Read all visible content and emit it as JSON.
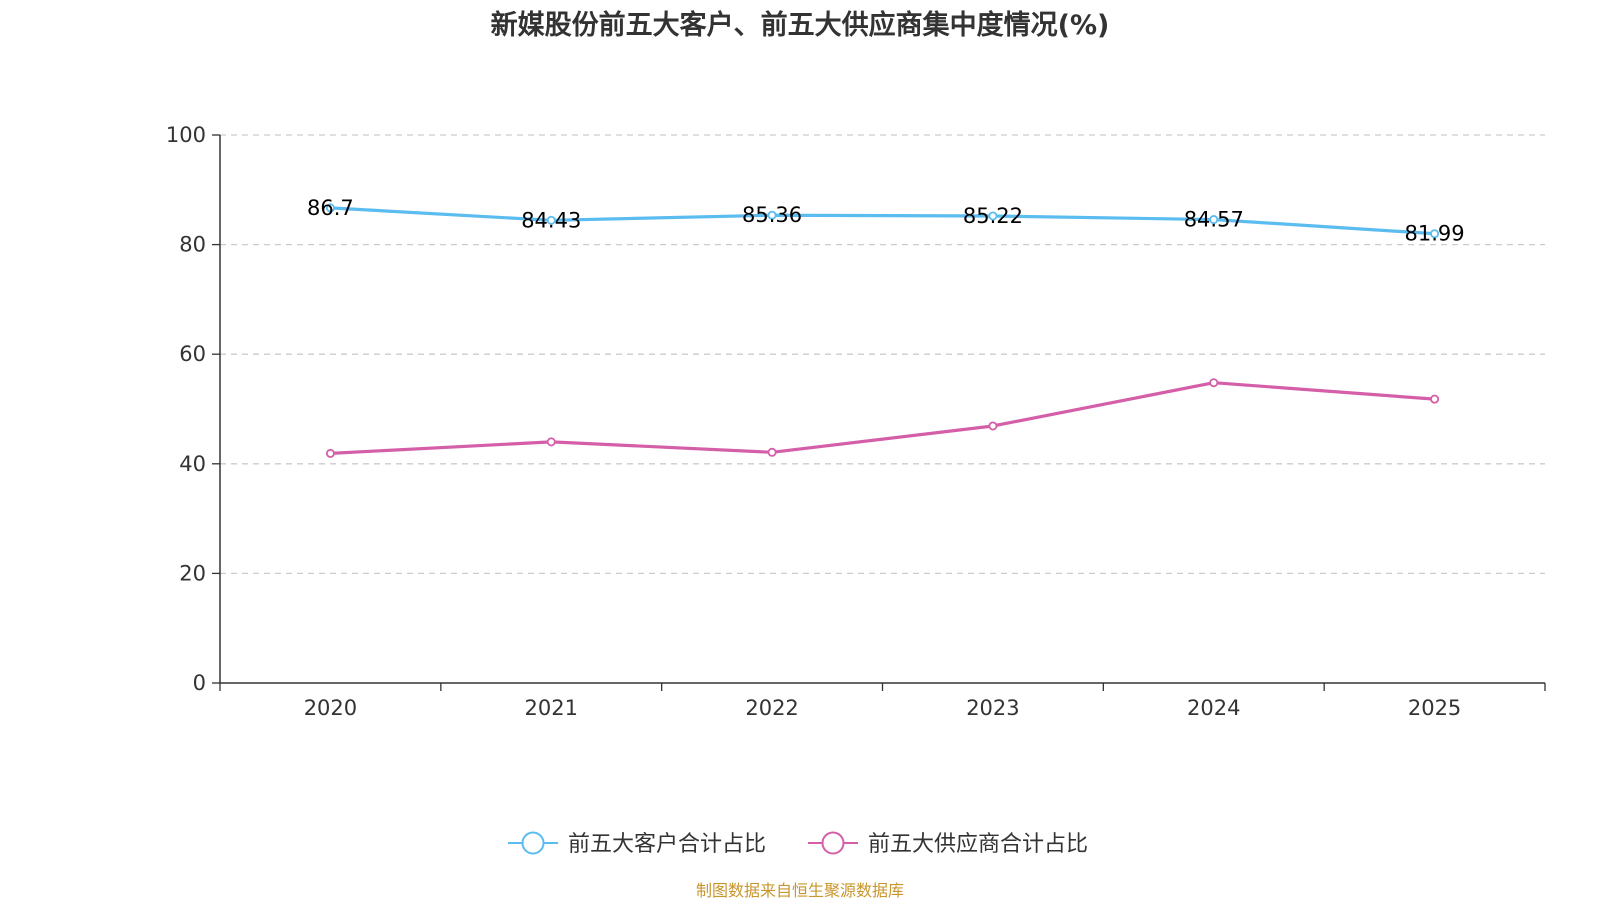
{
  "chart_data": {
    "type": "line",
    "title": "新媒股份前五大客户、前五大供应商集中度情况(%)",
    "categories": [
      "2020",
      "2021",
      "2022",
      "2023",
      "2024",
      "2025"
    ],
    "ylim": [
      0,
      100
    ],
    "yticks": [
      0,
      20,
      40,
      60,
      80,
      100
    ],
    "grid": true,
    "legend_position": "bottom-center",
    "series": [
      {
        "name": "前五大客户合计占比",
        "color": "#5bbcf0",
        "values": [
          86.7,
          84.43,
          85.36,
          85.22,
          84.57,
          81.99
        ],
        "labels": [
          "86.7",
          "84.43",
          "85.36",
          "85.22",
          "84.57",
          "81.99"
        ],
        "show_labels": true
      },
      {
        "name": "前五大供应商合计占比",
        "color": "#d45fa8",
        "values": [
          41.9,
          44.0,
          42.1,
          46.9,
          54.8,
          51.8
        ],
        "show_labels": false
      }
    ]
  },
  "source": {
    "text": "制图数据来自恒生聚源数据库",
    "color": "#c8962c"
  }
}
